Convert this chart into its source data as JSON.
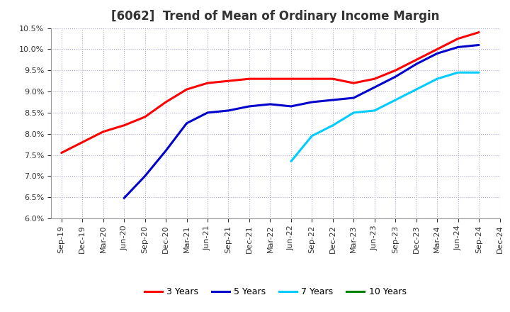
{
  "title": "[6062]  Trend of Mean of Ordinary Income Margin",
  "ylim": [
    0.06,
    0.105
  ],
  "yticks": [
    0.06,
    0.065,
    0.07,
    0.075,
    0.08,
    0.085,
    0.09,
    0.095,
    0.1,
    0.105
  ],
  "x_labels": [
    "Sep-19",
    "Dec-19",
    "Mar-20",
    "Jun-20",
    "Sep-20",
    "Dec-20",
    "Mar-21",
    "Jun-21",
    "Sep-21",
    "Dec-21",
    "Mar-22",
    "Jun-22",
    "Sep-22",
    "Dec-22",
    "Mar-23",
    "Jun-23",
    "Sep-23",
    "Dec-23",
    "Mar-24",
    "Jun-24",
    "Sep-24",
    "Dec-24"
  ],
  "series": {
    "3 Years": {
      "color": "#ff0000",
      "data_x": [
        0,
        1,
        2,
        3,
        4,
        5,
        6,
        7,
        8,
        9,
        10,
        11,
        12,
        13,
        14,
        15,
        16,
        17,
        18,
        19,
        20
      ],
      "data_y": [
        0.0755,
        0.078,
        0.0805,
        0.082,
        0.084,
        0.0875,
        0.0905,
        0.092,
        0.0925,
        0.093,
        0.093,
        0.093,
        0.093,
        0.093,
        0.092,
        0.093,
        0.095,
        0.0975,
        0.1,
        0.1025,
        0.104
      ]
    },
    "5 Years": {
      "color": "#0000cc",
      "data_x": [
        3,
        4,
        5,
        6,
        7,
        8,
        9,
        10,
        11,
        12,
        13,
        14,
        15,
        16,
        17,
        18,
        19,
        20
      ],
      "data_y": [
        0.0648,
        0.07,
        0.076,
        0.0825,
        0.085,
        0.0855,
        0.0865,
        0.087,
        0.0865,
        0.0875,
        0.088,
        0.0885,
        0.091,
        0.0935,
        0.0965,
        0.099,
        0.1005,
        0.101
      ]
    },
    "7 Years": {
      "color": "#00ccff",
      "data_x": [
        11,
        12,
        13,
        14,
        15,
        16,
        17,
        18,
        19,
        20
      ],
      "data_y": [
        0.0735,
        0.0795,
        0.082,
        0.085,
        0.0855,
        0.088,
        0.0905,
        0.093,
        0.0945,
        0.0945
      ]
    },
    "10 Years": {
      "color": "#008000",
      "data_x": [],
      "data_y": []
    }
  },
  "legend": {
    "labels": [
      "3 Years",
      "5 Years",
      "7 Years",
      "10 Years"
    ],
    "colors": [
      "#ff0000",
      "#0000cc",
      "#00ccff",
      "#008000"
    ]
  },
  "background_color": "#ffffff",
  "grid_color": "#aaaacc",
  "title_fontsize": 12,
  "tick_fontsize": 8
}
